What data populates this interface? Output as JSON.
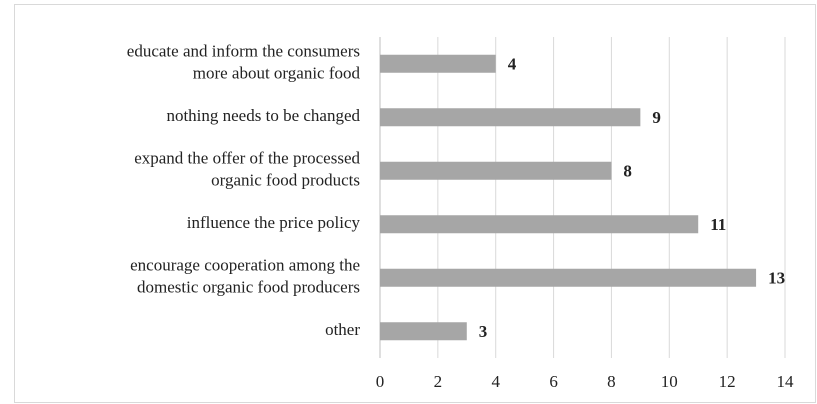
{
  "chart_data": {
    "type": "bar",
    "orientation": "horizontal",
    "categories": [
      [
        "educate and inform the consumers",
        "more about organic food"
      ],
      [
        "nothing needs to be changed"
      ],
      [
        "expand the offer of the processed",
        "organic food products"
      ],
      [
        "influence the price policy"
      ],
      [
        "encourage cooperation among the",
        "domestic organic food producers"
      ],
      [
        "other"
      ]
    ],
    "values": [
      4,
      9,
      8,
      11,
      13,
      3
    ],
    "color": "#a6a6a6",
    "xlim": [
      0,
      14
    ],
    "xticks": [
      0,
      2,
      4,
      6,
      8,
      10,
      12,
      14
    ],
    "grid": true
  }
}
